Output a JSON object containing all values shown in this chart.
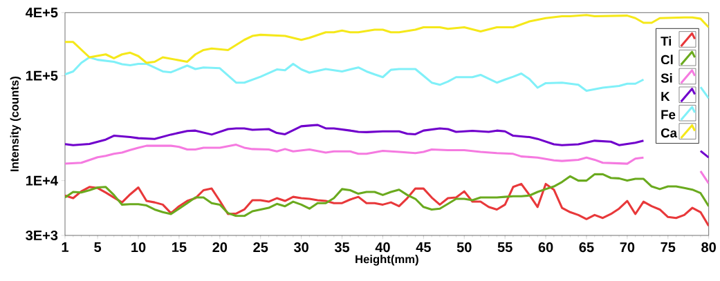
{
  "chart_data": {
    "type": "line",
    "xlabel": "Height(mm)",
    "ylabel": "Intensity (counts)",
    "log": "y",
    "grid": false,
    "legend": "top right",
    "line_style": "solid",
    "marker": "none",
    "xlim": [
      1,
      80
    ],
    "xticks": [
      1,
      5,
      10,
      15,
      20,
      25,
      30,
      35,
      40,
      45,
      50,
      55,
      60,
      65,
      70,
      75,
      80
    ],
    "ylim": [
      3000,
      400000
    ],
    "yticks": [
      {
        "value": 3000,
        "label": "3E+3"
      },
      {
        "value": 10000,
        "label": "1E+4"
      },
      {
        "value": 100000,
        "label": "1E+5"
      },
      {
        "value": 400000,
        "label": "4E+5"
      }
    ],
    "x": [
      1,
      2,
      3,
      4,
      5,
      6,
      7,
      8,
      9,
      10,
      11,
      12,
      13,
      14,
      15,
      16,
      17,
      18,
      19,
      20,
      21,
      22,
      23,
      24,
      25,
      26,
      27,
      28,
      29,
      30,
      31,
      32,
      33,
      34,
      35,
      36,
      37,
      38,
      39,
      40,
      41,
      42,
      43,
      44,
      45,
      46,
      47,
      48,
      49,
      50,
      51,
      52,
      53,
      54,
      55,
      56,
      57,
      58,
      59,
      60,
      61,
      62,
      63,
      64,
      65,
      66,
      67,
      68,
      69,
      70,
      71,
      72,
      73,
      74,
      75,
      76,
      77,
      78,
      79,
      80
    ],
    "series": [
      {
        "name": "Ti",
        "color": "#e8383a",
        "values": [
          7200,
          6800,
          7900,
          8700,
          8500,
          7700,
          6900,
          6200,
          7400,
          8600,
          6400,
          6200,
          5900,
          4900,
          5700,
          6400,
          6800,
          8100,
          8400,
          6400,
          4800,
          4850,
          5300,
          6500,
          6500,
          6300,
          6800,
          6400,
          7000,
          6800,
          6700,
          6500,
          6400,
          6100,
          6100,
          6600,
          7000,
          6100,
          6100,
          5900,
          6200,
          5700,
          6800,
          8400,
          8400,
          6900,
          5900,
          6800,
          6900,
          7900,
          6300,
          6300,
          5600,
          5300,
          5900,
          8700,
          9300,
          7300,
          5600,
          9300,
          8200,
          5500,
          5000,
          4700,
          4300,
          4700,
          4400,
          4800,
          5400,
          6400,
          4800,
          6300,
          5700,
          5300,
          4500,
          4400,
          4700,
          5500,
          5000,
          3700
        ]
      },
      {
        "name": "Cl",
        "color": "#6aaa1e",
        "values": [
          6900,
          7800,
          7700,
          8100,
          8600,
          8700,
          7300,
          5900,
          5950,
          5950,
          5800,
          5300,
          5000,
          4800,
          5400,
          6100,
          6900,
          6900,
          6100,
          5900,
          4900,
          4600,
          4600,
          5100,
          5300,
          5500,
          6000,
          5700,
          6300,
          5900,
          5400,
          6100,
          6100,
          6800,
          8300,
          8100,
          7500,
          7800,
          7800,
          7300,
          7800,
          8200,
          7300,
          6700,
          5600,
          5300,
          5400,
          6000,
          6700,
          6700,
          6500,
          6900,
          6900,
          6900,
          7000,
          7100,
          7100,
          7200,
          7800,
          8300,
          8800,
          9700,
          11000,
          10000,
          10000,
          11500,
          11500,
          10600,
          10500,
          10000,
          10400,
          10400,
          8800,
          8300,
          8800,
          8800,
          8500,
          8200,
          7600,
          5700
        ]
      },
      {
        "name": "Si",
        "color": "#f57ae0",
        "x": [
          1,
          3,
          5,
          6,
          7,
          8,
          9,
          10,
          11,
          14,
          15,
          16,
          17,
          18,
          20,
          22,
          23,
          24,
          26,
          27,
          28,
          29,
          31,
          33,
          34,
          36,
          37,
          38,
          40,
          42,
          44,
          45,
          46,
          48,
          50,
          52,
          54,
          56,
          57,
          59,
          61,
          62,
          64,
          65,
          66,
          67,
          69,
          70,
          71,
          72,
          75,
          79,
          80
        ],
        "values": [
          14500,
          14800,
          16700,
          17200,
          18000,
          18500,
          19600,
          20600,
          21500,
          21500,
          21000,
          19800,
          19800,
          20600,
          20600,
          22000,
          20600,
          20000,
          19800,
          19000,
          20000,
          19000,
          19800,
          18500,
          19000,
          19000,
          18000,
          18000,
          19200,
          18800,
          18300,
          18800,
          19800,
          19500,
          19500,
          18800,
          18300,
          18000,
          17000,
          16600,
          15600,
          15400,
          15800,
          16600,
          15800,
          14800,
          14600,
          14500,
          16200,
          16600,
          null,
          12300,
          9400
        ]
      },
      {
        "name": "K",
        "color": "#7000cc",
        "x": [
          1,
          2,
          4,
          6,
          7,
          9,
          10,
          12,
          14,
          16,
          17,
          19,
          21,
          22,
          23,
          24,
          26,
          27,
          28,
          30,
          32,
          33,
          34,
          36,
          37,
          38,
          40,
          42,
          43,
          44,
          45,
          47,
          48,
          49,
          51,
          53,
          54,
          55,
          56,
          58,
          59,
          61,
          62,
          64,
          66,
          68,
          69,
          71,
          72,
          75,
          79,
          80
        ],
        "values": [
          22300,
          21800,
          22400,
          24600,
          26800,
          26000,
          25400,
          25000,
          27500,
          29700,
          30000,
          27500,
          31000,
          31500,
          31500,
          30500,
          31000,
          28500,
          27700,
          33000,
          34000,
          31500,
          31500,
          30000,
          29200,
          29000,
          29500,
          29500,
          28000,
          27700,
          30000,
          31500,
          31000,
          29200,
          29800,
          29200,
          30000,
          29500,
          26800,
          26000,
          25000,
          22200,
          21800,
          22200,
          24000,
          23500,
          21800,
          23000,
          24000,
          null,
          19200,
          16600
        ]
      },
      {
        "name": "Fe",
        "color": "#80f0f8",
        "x": [
          1,
          2,
          3,
          4,
          5,
          7,
          8,
          9,
          10,
          11,
          13,
          14,
          16,
          17,
          18,
          20,
          22,
          23,
          25,
          27,
          28,
          29,
          30,
          31,
          33,
          35,
          37,
          38,
          39,
          40,
          41,
          42,
          44,
          45,
          46,
          47,
          48,
          49,
          51,
          52,
          54,
          55,
          56,
          57,
          58,
          59,
          60,
          62,
          64,
          65,
          67,
          69,
          70,
          71,
          72,
          75,
          79,
          80
        ],
        "values": [
          103000,
          110000,
          133000,
          150000,
          142000,
          136000,
          129000,
          126000,
          130000,
          130000,
          110000,
          108000,
          125000,
          116000,
          120000,
          118000,
          86000,
          86000,
          98000,
          115000,
          113000,
          130000,
          115000,
          107000,
          116000,
          110000,
          120000,
          110000,
          103000,
          97000,
          114000,
          116000,
          116000,
          100000,
          86000,
          82000,
          88000,
          97000,
          97000,
          102000,
          86000,
          92000,
          98000,
          105000,
          93000,
          77000,
          85000,
          86000,
          82000,
          72000,
          77000,
          80000,
          84000,
          84000,
          92000,
          null,
          78000,
          61000
        ]
      },
      {
        "name": "Ca",
        "color": "#f5e81a",
        "x": [
          1,
          2,
          4,
          6,
          7,
          8,
          9,
          10,
          11,
          12,
          13,
          16,
          17,
          18,
          19,
          21,
          23,
          24,
          25,
          28,
          30,
          31,
          33,
          34,
          35,
          36,
          37,
          39,
          40,
          41,
          42,
          44,
          45,
          47,
          48,
          50,
          52,
          54,
          56,
          58,
          60,
          62,
          63,
          65,
          66,
          70,
          71,
          72,
          73,
          74,
          77,
          78,
          79,
          80
        ],
        "values": [
          210000,
          210000,
          150000,
          160000,
          147000,
          160000,
          166000,
          154000,
          133000,
          136000,
          150000,
          136000,
          160000,
          176000,
          182000,
          176000,
          220000,
          240000,
          246000,
          240000,
          220000,
          230000,
          260000,
          260000,
          270000,
          260000,
          260000,
          275000,
          275000,
          260000,
          260000,
          275000,
          290000,
          290000,
          280000,
          290000,
          265000,
          290000,
          290000,
          330000,
          355000,
          370000,
          370000,
          380000,
          370000,
          375000,
          355000,
          320000,
          320000,
          355000,
          360000,
          360000,
          350000,
          290000
        ]
      }
    ]
  }
}
